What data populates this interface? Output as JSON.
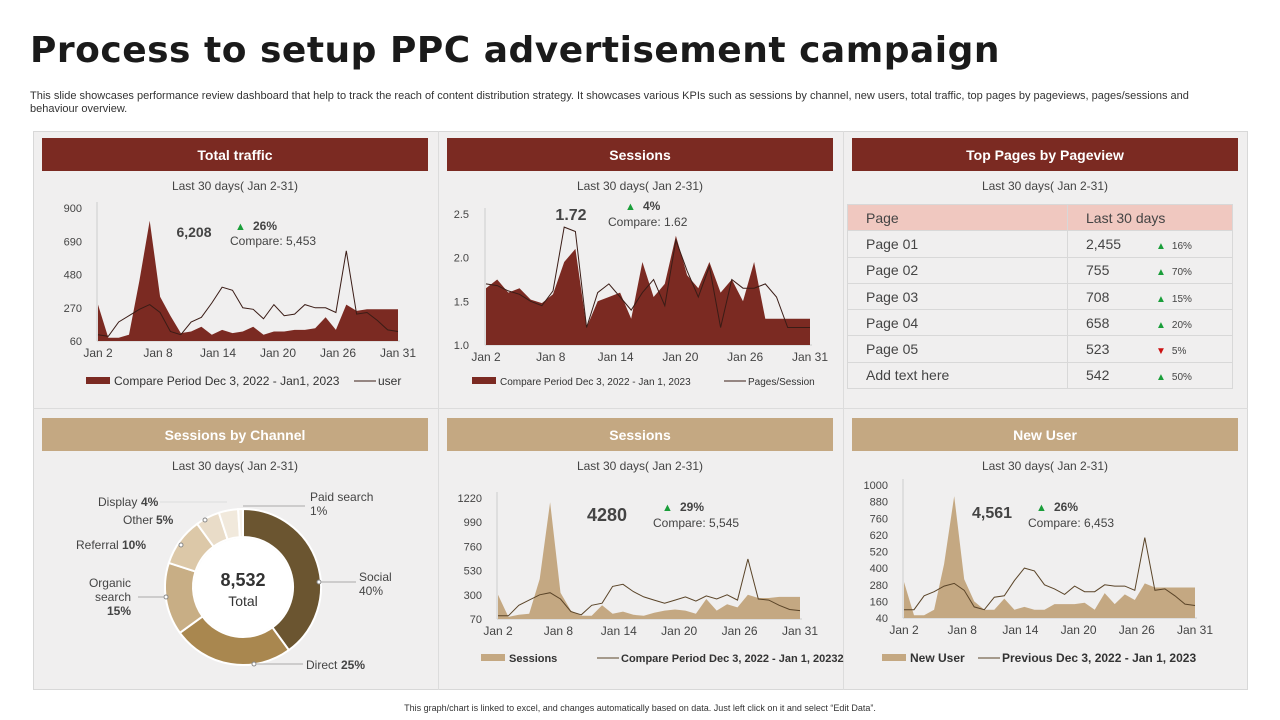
{
  "title": "Process to setup PPC advertisement campaign",
  "subtitle": "This slide showcases performance review dashboard that help to track the reach of content distribution strategy. It showcases various KPIs such as sessions by channel, new users, total traffic, top pages by pageviews, pages/sessions and behaviour overview.",
  "footer": "This graph/chart is linked to excel, and changes automatically based on data. Just left click on it and select “Edit Data”.",
  "colors": {
    "dark_red": "#7b2a22",
    "tan": "#c4a882",
    "up": "#1a9e3a",
    "down": "#cc1111"
  },
  "panels": {
    "total_traffic": {
      "title": "Total traffic",
      "period": "Last 30 days( Jan 2-31)",
      "value": "6,208",
      "change": "26%",
      "compare": "Compare:  5,453"
    },
    "sessions_top": {
      "title": "Sessions",
      "period": "Last 30 days( Jan 2-31)",
      "value": "1.72",
      "change": "4%",
      "compare": "Compare:  1.62"
    },
    "top_pages": {
      "title": "Top Pages by Pageview",
      "period": "Last 30 days( Jan 2-31)"
    },
    "sessions_by_channel": {
      "title": "Sessions by Channel",
      "period": "Last 30 days( Jan 2-31)",
      "total_value": "8,532",
      "total_label": "Total"
    },
    "sessions_bottom": {
      "title": "Sessions",
      "period": "Last 30 days( Jan 2-31)",
      "value": "4280",
      "change": "29%",
      "compare": "Compare:  5,545"
    },
    "new_user": {
      "title": "New User",
      "period": "Last 30 days( Jan 2-31)",
      "value": "4,561",
      "change": "26%",
      "compare": "Compare:  6,453"
    }
  },
  "table": {
    "headers": [
      "Page",
      "Last 30 days"
    ],
    "rows": [
      {
        "page": "Page 01",
        "value": "2,455",
        "change": "16%",
        "dir": "up"
      },
      {
        "page": "Page 02",
        "value": "755",
        "change": "70%",
        "dir": "up"
      },
      {
        "page": "Page 03",
        "value": "708",
        "change": "15%",
        "dir": "up"
      },
      {
        "page": "Page 04",
        "value": "658",
        "change": "20%",
        "dir": "up"
      },
      {
        "page": "Page 05",
        "value": "523",
        "change": "5%",
        "dir": "down"
      },
      {
        "page": "Add text here",
        "value": "542",
        "change": "50%",
        "dir": "up"
      }
    ]
  },
  "chart_data": [
    {
      "id": "total_traffic",
      "type": "area",
      "xticks": [
        "Jan 2",
        "Jan 8",
        "Jan 14",
        "Jan 20",
        "Jan 26",
        "Jan 31"
      ],
      "ylim": [
        60,
        900
      ],
      "yticks": [
        "900",
        "690",
        "480",
        "270",
        "60"
      ],
      "series": [
        {
          "name": "Compare Period Dec 3, 2022 - Jan1, 2023",
          "kind": "area",
          "values": [
            290,
            80,
            80,
            100,
            440,
            820,
            340,
            220,
            110,
            120,
            150,
            100,
            130,
            110,
            120,
            150,
            100,
            120,
            120,
            130,
            130,
            140,
            210,
            130,
            290,
            250,
            260,
            260,
            260,
            260
          ]
        },
        {
          "name": "user",
          "kind": "line",
          "values": [
            100,
            90,
            180,
            220,
            260,
            290,
            240,
            120,
            100,
            180,
            210,
            300,
            400,
            380,
            270,
            260,
            200,
            290,
            220,
            230,
            290,
            270,
            270,
            240,
            630,
            230,
            240,
            190,
            130,
            120
          ]
        }
      ]
    },
    {
      "id": "sessions_top",
      "type": "area",
      "xticks": [
        "Jan 2",
        "Jan 8",
        "Jan 14",
        "Jan 20",
        "Jan 26",
        "Jan 31"
      ],
      "ylim": [
        1.0,
        2.5
      ],
      "yticks": [
        "2.5",
        "2.0",
        "1.5",
        "1.0"
      ],
      "series": [
        {
          "name": "Compare Period Dec 3, 2022 - Jan 1, 2023",
          "kind": "area",
          "values": [
            1.65,
            1.75,
            1.6,
            1.65,
            1.52,
            1.48,
            1.58,
            1.95,
            2.1,
            1.2,
            1.5,
            1.55,
            1.6,
            1.3,
            1.95,
            1.55,
            1.7,
            2.25,
            1.8,
            1.65,
            1.95,
            1.6,
            1.75,
            1.5,
            1.95,
            1.3,
            1.3,
            1.3,
            1.3,
            1.3
          ]
        },
        {
          "name": "Pages/Session",
          "kind": "line",
          "values": [
            1.7,
            1.68,
            1.62,
            1.58,
            1.5,
            1.45,
            1.62,
            2.35,
            2.3,
            1.2,
            1.6,
            1.7,
            1.55,
            1.4,
            1.6,
            1.75,
            1.45,
            2.2,
            1.85,
            1.55,
            1.9,
            1.2,
            1.75,
            1.65,
            1.65,
            1.7,
            1.55,
            1.2,
            1.2,
            1.2
          ]
        }
      ]
    },
    {
      "id": "sessions_by_channel",
      "type": "pie",
      "categories": [
        "Social",
        "Direct",
        "Organic search",
        "Referral",
        "Other",
        "Display",
        "Paid search"
      ],
      "values": [
        40,
        25,
        15,
        10,
        5,
        4,
        1
      ],
      "labels": [
        {
          "name": "Social",
          "pct": "40%"
        },
        {
          "name": "Direct",
          "pct": "25%"
        },
        {
          "name_line1": "Organic",
          "name_line2": "search",
          "pct": "15%"
        },
        {
          "name": "Referral",
          "pct": "10%"
        },
        {
          "name": "Other",
          "pct": "5%"
        },
        {
          "name": "Display",
          "pct": "4%"
        },
        {
          "name": "Paid search",
          "pct": "1%"
        }
      ],
      "slice_colors": [
        "#6b5530",
        "#a9874f",
        "#c8ae85",
        "#dcc8a8",
        "#e9dcc8",
        "#f1e9dc",
        "#f7f2ea"
      ]
    },
    {
      "id": "sessions_bottom",
      "type": "area",
      "xticks": [
        "Jan 2",
        "Jan 8",
        "Jan 14",
        "Jan 20",
        "Jan 26",
        "Jan 31"
      ],
      "ylim": [
        70,
        1220
      ],
      "yticks": [
        "1220",
        "990",
        "760",
        "530",
        "300",
        "70"
      ],
      "series": [
        {
          "name": "Sessions",
          "kind": "area",
          "values": [
            300,
            90,
            110,
            120,
            450,
            1180,
            320,
            150,
            100,
            100,
            200,
            120,
            140,
            110,
            100,
            130,
            150,
            160,
            150,
            120,
            260,
            150,
            210,
            180,
            300,
            270,
            270,
            280,
            280,
            280
          ]
        },
        {
          "name": "Compare Period Dec 3, 2022 - Jan 1, 20232",
          "kind": "line",
          "values": [
            100,
            100,
            200,
            250,
            300,
            320,
            260,
            140,
            110,
            200,
            220,
            380,
            400,
            330,
            280,
            250,
            220,
            250,
            280,
            240,
            290,
            260,
            300,
            250,
            640,
            260,
            250,
            200,
            160,
            150
          ]
        }
      ]
    },
    {
      "id": "new_user",
      "type": "area",
      "xticks": [
        "Jan 2",
        "Jan 8",
        "Jan 14",
        "Jan 20",
        "Jan 26",
        "Jan 31"
      ],
      "ylim": [
        40,
        1000
      ],
      "yticks": [
        "1000",
        "880",
        "760",
        "620",
        "520",
        "400",
        "280",
        "160",
        "40"
      ],
      "series": [
        {
          "name": "New User",
          "kind": "area",
          "values": [
            300,
            60,
            60,
            100,
            430,
            920,
            320,
            160,
            100,
            100,
            180,
            100,
            120,
            100,
            100,
            140,
            140,
            140,
            150,
            100,
            220,
            140,
            210,
            170,
            290,
            260,
            260,
            260,
            260,
            260
          ]
        },
        {
          "name": "Previous  Dec 3, 2022 - Jan 1, 2023",
          "kind": "line",
          "values": [
            100,
            100,
            200,
            230,
            270,
            290,
            240,
            120,
            100,
            190,
            200,
            310,
            400,
            380,
            280,
            250,
            210,
            270,
            230,
            230,
            280,
            270,
            270,
            240,
            620,
            240,
            250,
            200,
            140,
            130
          ]
        }
      ]
    }
  ]
}
